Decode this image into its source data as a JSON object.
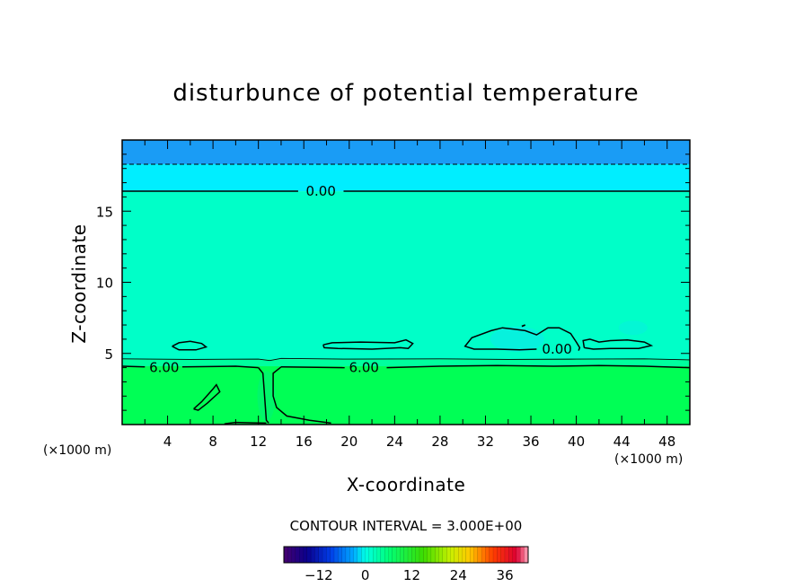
{
  "chart_data": {
    "type": "heatmap",
    "title": "disturbunce of potential temperature",
    "xlabel": "X-coordinate",
    "ylabel": "Z-coordinate",
    "x_unit_left": "(×1000 m)",
    "x_unit_right": "(×1000 m)",
    "xlim": [
      0,
      50
    ],
    "ylim": [
      0,
      20
    ],
    "x_ticks": [
      4,
      8,
      12,
      16,
      20,
      24,
      28,
      32,
      36,
      40,
      44,
      48
    ],
    "y_ticks": [
      5,
      10,
      15
    ],
    "contour_interval_text": "CONTOUR INTERVAL = 3.000E+00",
    "contour_labels": [
      {
        "text": "0.00",
        "x": 17.5,
        "z": 16.4
      },
      {
        "text": "0.00",
        "x": 38.3,
        "z": 5.3
      },
      {
        "text": "6.00",
        "x": 3.7,
        "z": 4.0
      },
      {
        "text": "6.00",
        "x": 21.3,
        "z": 4.0
      }
    ],
    "colorbar": {
      "min": -21,
      "max": 42,
      "ticks": [
        -12,
        0,
        12,
        24,
        36
      ],
      "tick_labels": [
        "-12",
        "0",
        "12",
        "24",
        "36"
      ]
    },
    "layers": [
      {
        "zmin": 18.3,
        "zmax": 20,
        "value": -3,
        "color": "#1a9cf5"
      },
      {
        "zmin": 16.4,
        "zmax": 18.3,
        "value": -1,
        "color": "#00eeff"
      },
      {
        "zmin": 4.6,
        "zmax": 16.4,
        "value": 3,
        "color": "#00ffc8"
      },
      {
        "zmin": 0,
        "zmax": 4.1,
        "value": 7,
        "color": "#00ff55"
      }
    ]
  },
  "colors": {
    "band_top": "#1a9cf5",
    "band_upper": "#00eeff",
    "band_mid": "#00ffc8",
    "band_transition": "#00ff9e",
    "band_low": "#00ff55"
  }
}
